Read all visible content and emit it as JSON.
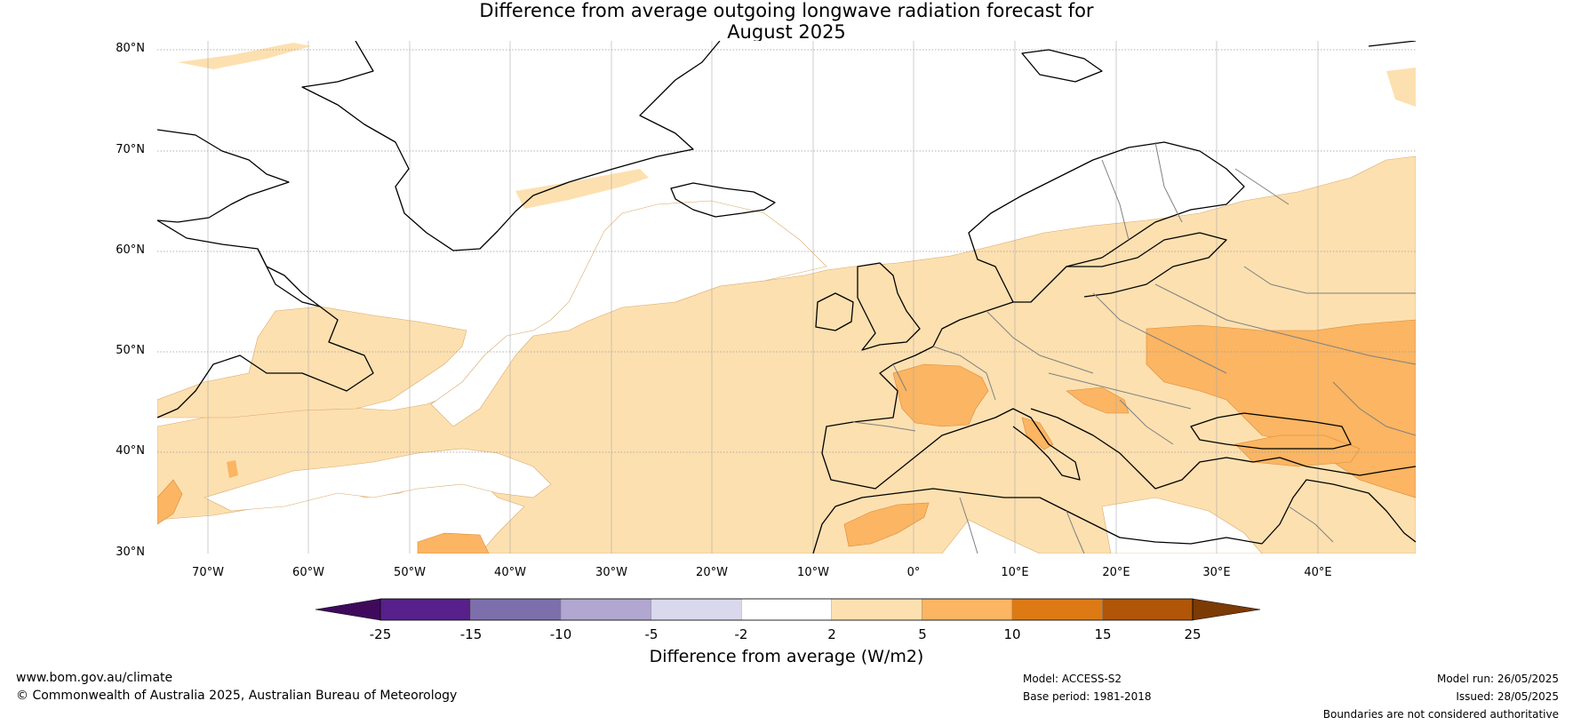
{
  "title": {
    "line1": "Difference from average outgoing longwave radiation forecast for",
    "line2": "August 2025"
  },
  "map": {
    "lat_labels": [
      "80°N",
      "70°N",
      "60°N",
      "50°N",
      "40°N",
      "30°N"
    ],
    "lon_labels": [
      "70°W",
      "60°W",
      "50°W",
      "40°W",
      "30°W",
      "20°W",
      "10°W",
      "0°",
      "10°E",
      "20°E",
      "30°E",
      "40°E"
    ],
    "colors": {
      "ocean": "#ffffff",
      "fill_2_5": "#fde0b0",
      "fill_5_10": "#fbb563",
      "coast": "#000000",
      "border": "#808080",
      "grid": "#999999"
    }
  },
  "colorbar": {
    "ticks": [
      "-25",
      "-15",
      "-10",
      "-5",
      "-2",
      "2",
      "5",
      "10",
      "15",
      "25"
    ],
    "colors": [
      "#3f0a5c",
      "#57208a",
      "#7d6fac",
      "#b1a7d1",
      "#d9d8ec",
      "#ffffff",
      "#fde0b0",
      "#fbb563",
      "#dd7a14",
      "#b15508",
      "#7c3a05"
    ],
    "title": "Difference from average (W/m2)"
  },
  "footer": {
    "website": "www.bom.gov.au/climate",
    "copyright": "© Commonwealth of Australia 2025, Australian Bureau of Meteorology",
    "model": "Model: ACCESS-S2",
    "base_period": "Base period: 1981-2018",
    "model_run": "Model run: 26/05/2025",
    "issued": "Issued: 28/05/2025",
    "disclaimer": "Boundaries are not considered authoritative"
  }
}
